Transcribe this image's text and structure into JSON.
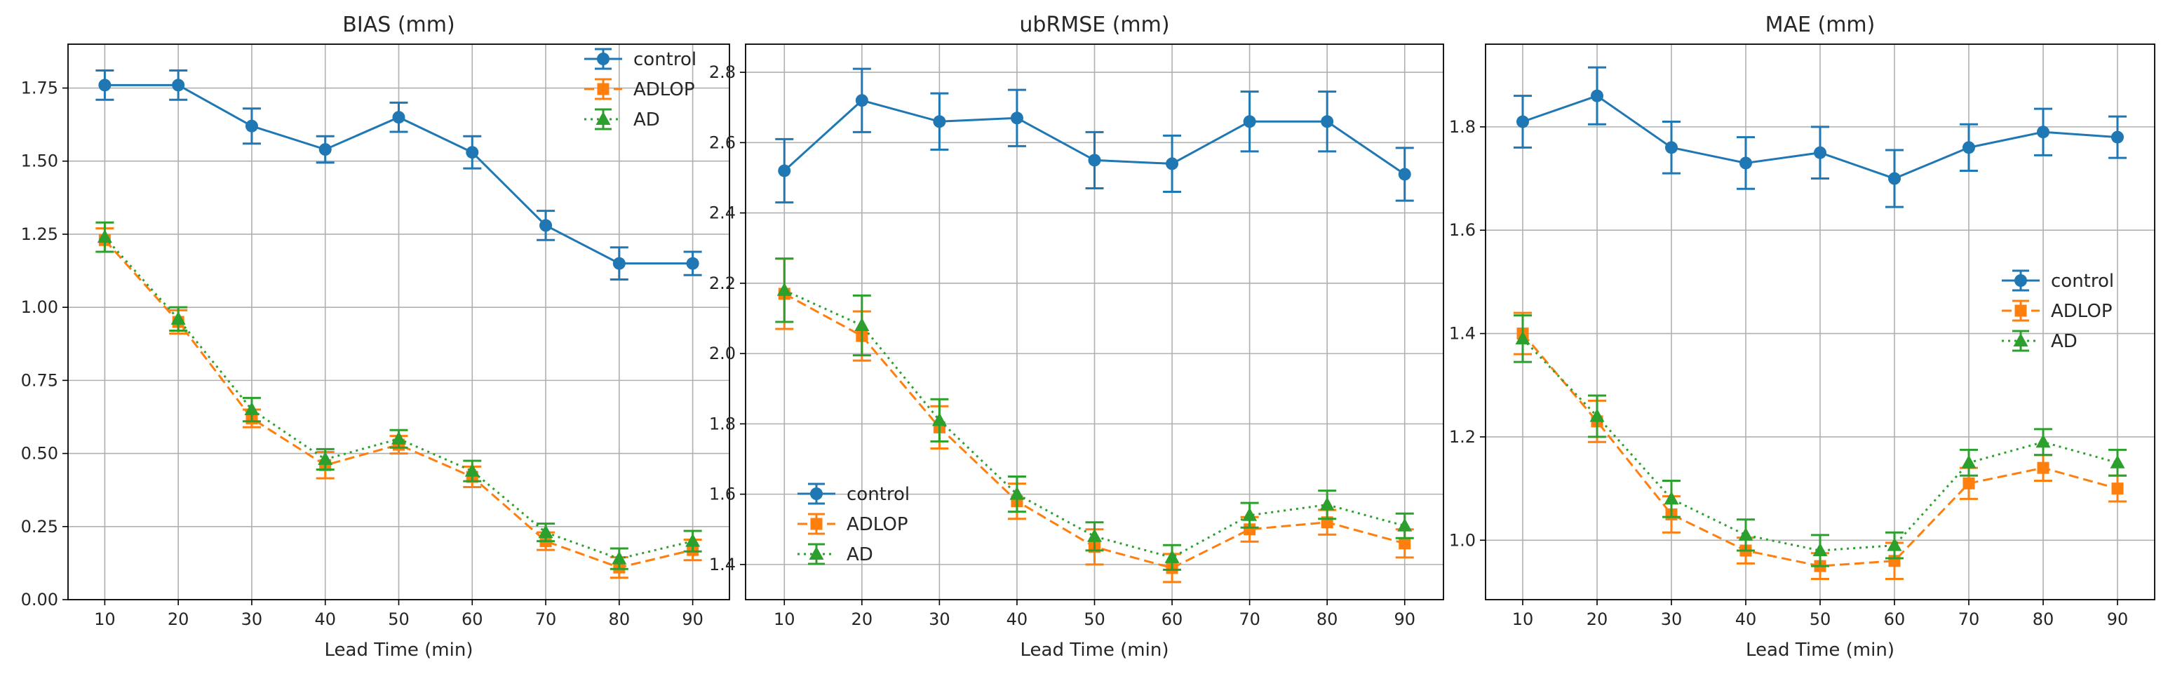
{
  "chart_data": [
    {
      "type": "line",
      "title": "BIAS (mm)",
      "xlabel": "Lead Time (min)",
      "ylabel": "",
      "x": [
        10,
        20,
        30,
        40,
        50,
        60,
        70,
        80,
        90
      ],
      "xlim": [
        5,
        95
      ],
      "ylim": [
        0.0,
        1.9
      ],
      "yticks": [
        0.0,
        0.25,
        0.5,
        0.75,
        1.0,
        1.25,
        1.5,
        1.75
      ],
      "ytick_labels": [
        "0.00",
        "0.25",
        "0.50",
        "0.75",
        "1.00",
        "1.25",
        "1.50",
        "1.75"
      ],
      "grid": true,
      "legend_position": "top-right",
      "series": [
        {
          "name": "control",
          "color": "#1f77b4",
          "marker": "circle",
          "linestyle": "solid",
          "values": [
            1.76,
            1.76,
            1.62,
            1.54,
            1.65,
            1.53,
            1.28,
            1.15,
            1.15
          ],
          "errors": [
            0.05,
            0.05,
            0.06,
            0.045,
            0.05,
            0.055,
            0.05,
            0.055,
            0.04
          ]
        },
        {
          "name": "ADLOP",
          "color": "#ff7f0e",
          "marker": "square",
          "linestyle": "dashed",
          "values": [
            1.23,
            0.95,
            0.62,
            0.46,
            0.53,
            0.42,
            0.2,
            0.11,
            0.17
          ],
          "errors": [
            0.04,
            0.04,
            0.03,
            0.045,
            0.03,
            0.035,
            0.03,
            0.035,
            0.035
          ]
        },
        {
          "name": "AD",
          "color": "#2ca02c",
          "marker": "triangle",
          "linestyle": "dotted",
          "values": [
            1.24,
            0.96,
            0.65,
            0.48,
            0.55,
            0.44,
            0.23,
            0.14,
            0.2
          ],
          "errors": [
            0.05,
            0.04,
            0.04,
            0.035,
            0.03,
            0.035,
            0.03,
            0.035,
            0.035
          ]
        }
      ]
    },
    {
      "type": "line",
      "title": "ubRMSE (mm)",
      "xlabel": "Lead Time (min)",
      "ylabel": "",
      "x": [
        10,
        20,
        30,
        40,
        50,
        60,
        70,
        80,
        90
      ],
      "xlim": [
        5,
        95
      ],
      "ylim": [
        1.3,
        2.88
      ],
      "yticks": [
        1.4,
        1.6,
        1.8,
        2.0,
        2.2,
        2.4,
        2.6,
        2.8
      ],
      "ytick_labels": [
        "1.4",
        "1.6",
        "1.8",
        "2.0",
        "2.2",
        "2.4",
        "2.6",
        "2.8"
      ],
      "grid": true,
      "legend_position": "bottom-left",
      "series": [
        {
          "name": "control",
          "color": "#1f77b4",
          "marker": "circle",
          "linestyle": "solid",
          "values": [
            2.52,
            2.72,
            2.66,
            2.67,
            2.55,
            2.54,
            2.66,
            2.66,
            2.51
          ],
          "errors": [
            0.09,
            0.09,
            0.08,
            0.08,
            0.08,
            0.08,
            0.085,
            0.085,
            0.075
          ]
        },
        {
          "name": "ADLOP",
          "color": "#ff7f0e",
          "marker": "square",
          "linestyle": "dashed",
          "values": [
            2.17,
            2.05,
            1.79,
            1.58,
            1.45,
            1.39,
            1.5,
            1.52,
            1.46
          ],
          "errors": [
            0.1,
            0.07,
            0.06,
            0.05,
            0.05,
            0.04,
            0.035,
            0.035,
            0.04
          ]
        },
        {
          "name": "AD",
          "color": "#2ca02c",
          "marker": "triangle",
          "linestyle": "dotted",
          "values": [
            2.18,
            2.08,
            1.81,
            1.6,
            1.48,
            1.42,
            1.54,
            1.57,
            1.51
          ],
          "errors": [
            0.09,
            0.085,
            0.06,
            0.05,
            0.04,
            0.035,
            0.035,
            0.04,
            0.035
          ]
        }
      ]
    },
    {
      "type": "line",
      "title": "MAE (mm)",
      "xlabel": "Lead Time (min)",
      "ylabel": "",
      "x": [
        10,
        20,
        30,
        40,
        50,
        60,
        70,
        80,
        90
      ],
      "xlim": [
        5,
        95
      ],
      "ylim": [
        0.885,
        1.96
      ],
      "yticks": [
        1.0,
        1.2,
        1.4,
        1.6,
        1.8
      ],
      "ytick_labels": [
        "1.0",
        "1.2",
        "1.4",
        "1.6",
        "1.8"
      ],
      "grid": true,
      "legend_position": "center-right",
      "series": [
        {
          "name": "control",
          "color": "#1f77b4",
          "marker": "circle",
          "linestyle": "solid",
          "values": [
            1.81,
            1.86,
            1.76,
            1.73,
            1.75,
            1.7,
            1.76,
            1.79,
            1.78
          ],
          "errors": [
            0.05,
            0.055,
            0.05,
            0.05,
            0.05,
            0.055,
            0.045,
            0.045,
            0.04
          ]
        },
        {
          "name": "ADLOP",
          "color": "#ff7f0e",
          "marker": "square",
          "linestyle": "dashed",
          "values": [
            1.4,
            1.23,
            1.05,
            0.98,
            0.95,
            0.96,
            1.11,
            1.14,
            1.1
          ],
          "errors": [
            0.04,
            0.04,
            0.035,
            0.025,
            0.025,
            0.035,
            0.03,
            0.025,
            0.025
          ]
        },
        {
          "name": "AD",
          "color": "#2ca02c",
          "marker": "triangle",
          "linestyle": "dotted",
          "values": [
            1.39,
            1.24,
            1.08,
            1.01,
            0.98,
            0.99,
            1.15,
            1.19,
            1.15
          ],
          "errors": [
            0.045,
            0.04,
            0.035,
            0.03,
            0.03,
            0.025,
            0.025,
            0.025,
            0.025
          ]
        }
      ]
    }
  ]
}
